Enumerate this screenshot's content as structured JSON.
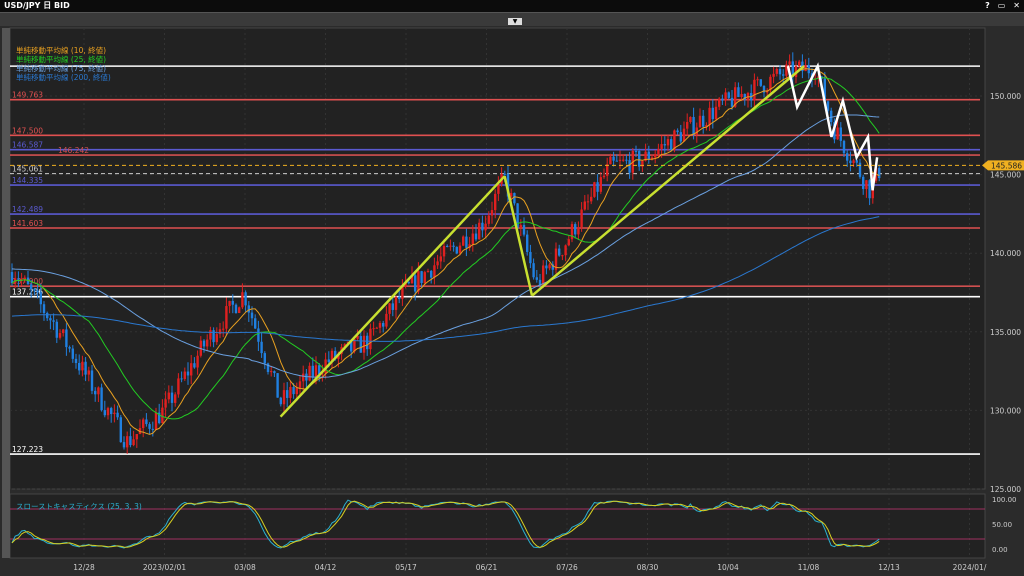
{
  "window": {
    "title": "USD/JPY 日 BID",
    "buttons": [
      "?",
      "▭",
      "✕"
    ]
  },
  "legend": [
    {
      "label": "単純移動平均線 (10, 終値)",
      "color": "#e8a020"
    },
    {
      "label": "単純移動平均線 (25, 終値)",
      "color": "#22cc22"
    },
    {
      "label": "単純移動平均線 (75, 終値)",
      "color": "#6aa0e0"
    },
    {
      "label": "単純移動平均線 (200, 終値)",
      "color": "#2a78d0"
    }
  ],
  "stochastic": {
    "label": "スローストキャスティクス (25, 3, 3)",
    "levels": [
      80,
      20
    ],
    "ticks": [
      "100.00",
      "50.00",
      "0.00"
    ]
  },
  "chart_data": {
    "type": "candlestick",
    "symbol": "USD/JPY",
    "ylim": [
      125,
      153
    ],
    "y_ticks": [
      "150.000",
      "145.000",
      "140.000",
      "135.000",
      "130.000",
      "125.000"
    ],
    "x_ticks": [
      "12/28",
      "2023/02/01",
      "03/08",
      "04/12",
      "05/17",
      "06/21",
      "07/26",
      "08/30",
      "10/04",
      "11/08",
      "12/13",
      "2024/01/"
    ],
    "current_price": "145.586",
    "price_path": [
      [
        "2022-11-28",
        138.8
      ],
      [
        "2022-12-15",
        135.5
      ],
      [
        "2023-01-03",
        131
      ],
      [
        "2023-01-16",
        128
      ],
      [
        "2023-02-01",
        130
      ],
      [
        "2023-02-20",
        134.5
      ],
      [
        "2023-03-08",
        137.5
      ],
      [
        "2023-03-24",
        130.5
      ],
      [
        "2023-04-12",
        133
      ],
      [
        "2023-05-02",
        134.5
      ],
      [
        "2023-05-17",
        137.5
      ],
      [
        "2023-06-01",
        139.5
      ],
      [
        "2023-06-21",
        142
      ],
      [
        "2023-06-30",
        144.8
      ],
      [
        "2023-07-14",
        138
      ],
      [
        "2023-07-26",
        140.5
      ],
      [
        "2023-08-15",
        145.5
      ],
      [
        "2023-08-30",
        146
      ],
      [
        "2023-10-04",
        149.5
      ],
      [
        "2023-10-31",
        151.5
      ],
      [
        "2023-11-13",
        151.8
      ],
      [
        "2023-11-21",
        148
      ],
      [
        "2023-12-07",
        144
      ],
      [
        "2023-12-12",
        145.6
      ]
    ],
    "horizontal_lines": [
      {
        "price": 151.9,
        "label": "",
        "color": "#ffffff"
      },
      {
        "price": 149.763,
        "label": "149.763",
        "color": "#e05050"
      },
      {
        "price": 147.5,
        "label": "147.500",
        "color": "#e05050"
      },
      {
        "price": 146.587,
        "label": "146.587",
        "color": "#5a5ad0"
      },
      {
        "price": 146.242,
        "label": "146.242",
        "color": "#d05050"
      },
      {
        "price": 145.061,
        "label": "145.061",
        "color": "#cccccc",
        "dashed": true
      },
      {
        "price": 144.335,
        "label": "144.335",
        "color": "#5a5ad0"
      },
      {
        "price": 142.489,
        "label": "142.489",
        "color": "#5a5ad0"
      },
      {
        "price": 141.603,
        "label": "141.603",
        "color": "#e05050"
      },
      {
        "price": 137.9,
        "label": "137.900",
        "color": "#d05050"
      },
      {
        "price": 137.236,
        "label": "137.236",
        "color": "#ffffff"
      },
      {
        "price": 127.223,
        "label": "127.223",
        "color": "#ffffff"
      }
    ],
    "trend_lines": [
      [
        [
          "2023-03-24",
          129.6
        ],
        [
          "2023-06-30",
          144.9
        ]
      ],
      [
        [
          "2023-06-30",
          144.9
        ],
        [
          "2023-07-12",
          137.3
        ]
      ],
      [
        [
          "2023-07-12",
          137.3
        ],
        [
          "2023-11-08",
          151.9
        ]
      ]
    ],
    "zigzag": [
      [
        "2023-11-01",
        151.9
      ],
      [
        "2023-11-05",
        149.3
      ],
      [
        "2023-11-14",
        151.9
      ],
      [
        "2023-11-20",
        147.4
      ],
      [
        "2023-11-25",
        149.7
      ],
      [
        "2023-12-01",
        146.1
      ],
      [
        "2023-12-06",
        147.4
      ],
      [
        "2023-12-08",
        144
      ],
      [
        "2023-12-10",
        146.1
      ]
    ],
    "colors": {
      "up": "#e02020",
      "down": "#2080e0",
      "trend": "#c8e030",
      "zigzag": "#ffffff",
      "current": "#f0b020"
    }
  }
}
